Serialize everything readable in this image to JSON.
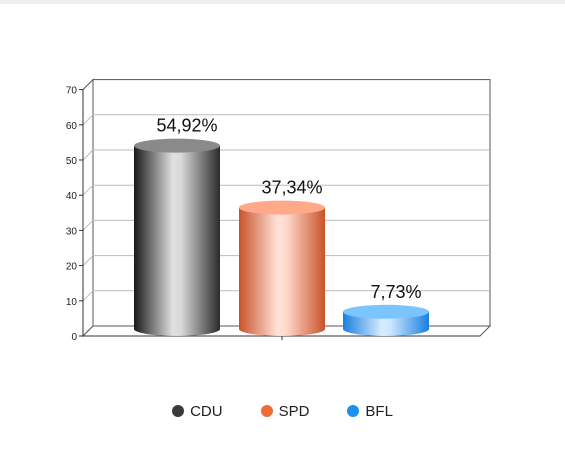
{
  "chart_data": {
    "type": "bar",
    "categories": [
      "CDU",
      "SPD",
      "BFL"
    ],
    "values": [
      54.92,
      37.34,
      7.73
    ],
    "data_labels": [
      "54,92%",
      "37,34%",
      "7,73%"
    ],
    "ylim": [
      0,
      70
    ],
    "yticks": [
      0,
      10,
      20,
      30,
      40,
      50,
      60,
      70
    ],
    "grid": true,
    "legend_position": "bottom",
    "series_colors": [
      "#3a3a3a",
      "#f06a3a",
      "#1e90f0"
    ]
  },
  "legend": [
    {
      "label": "CDU",
      "color": "#3a3a3a"
    },
    {
      "label": "SPD",
      "color": "#f06a3a"
    },
    {
      "label": "BFL",
      "color": "#1e90f0"
    }
  ]
}
